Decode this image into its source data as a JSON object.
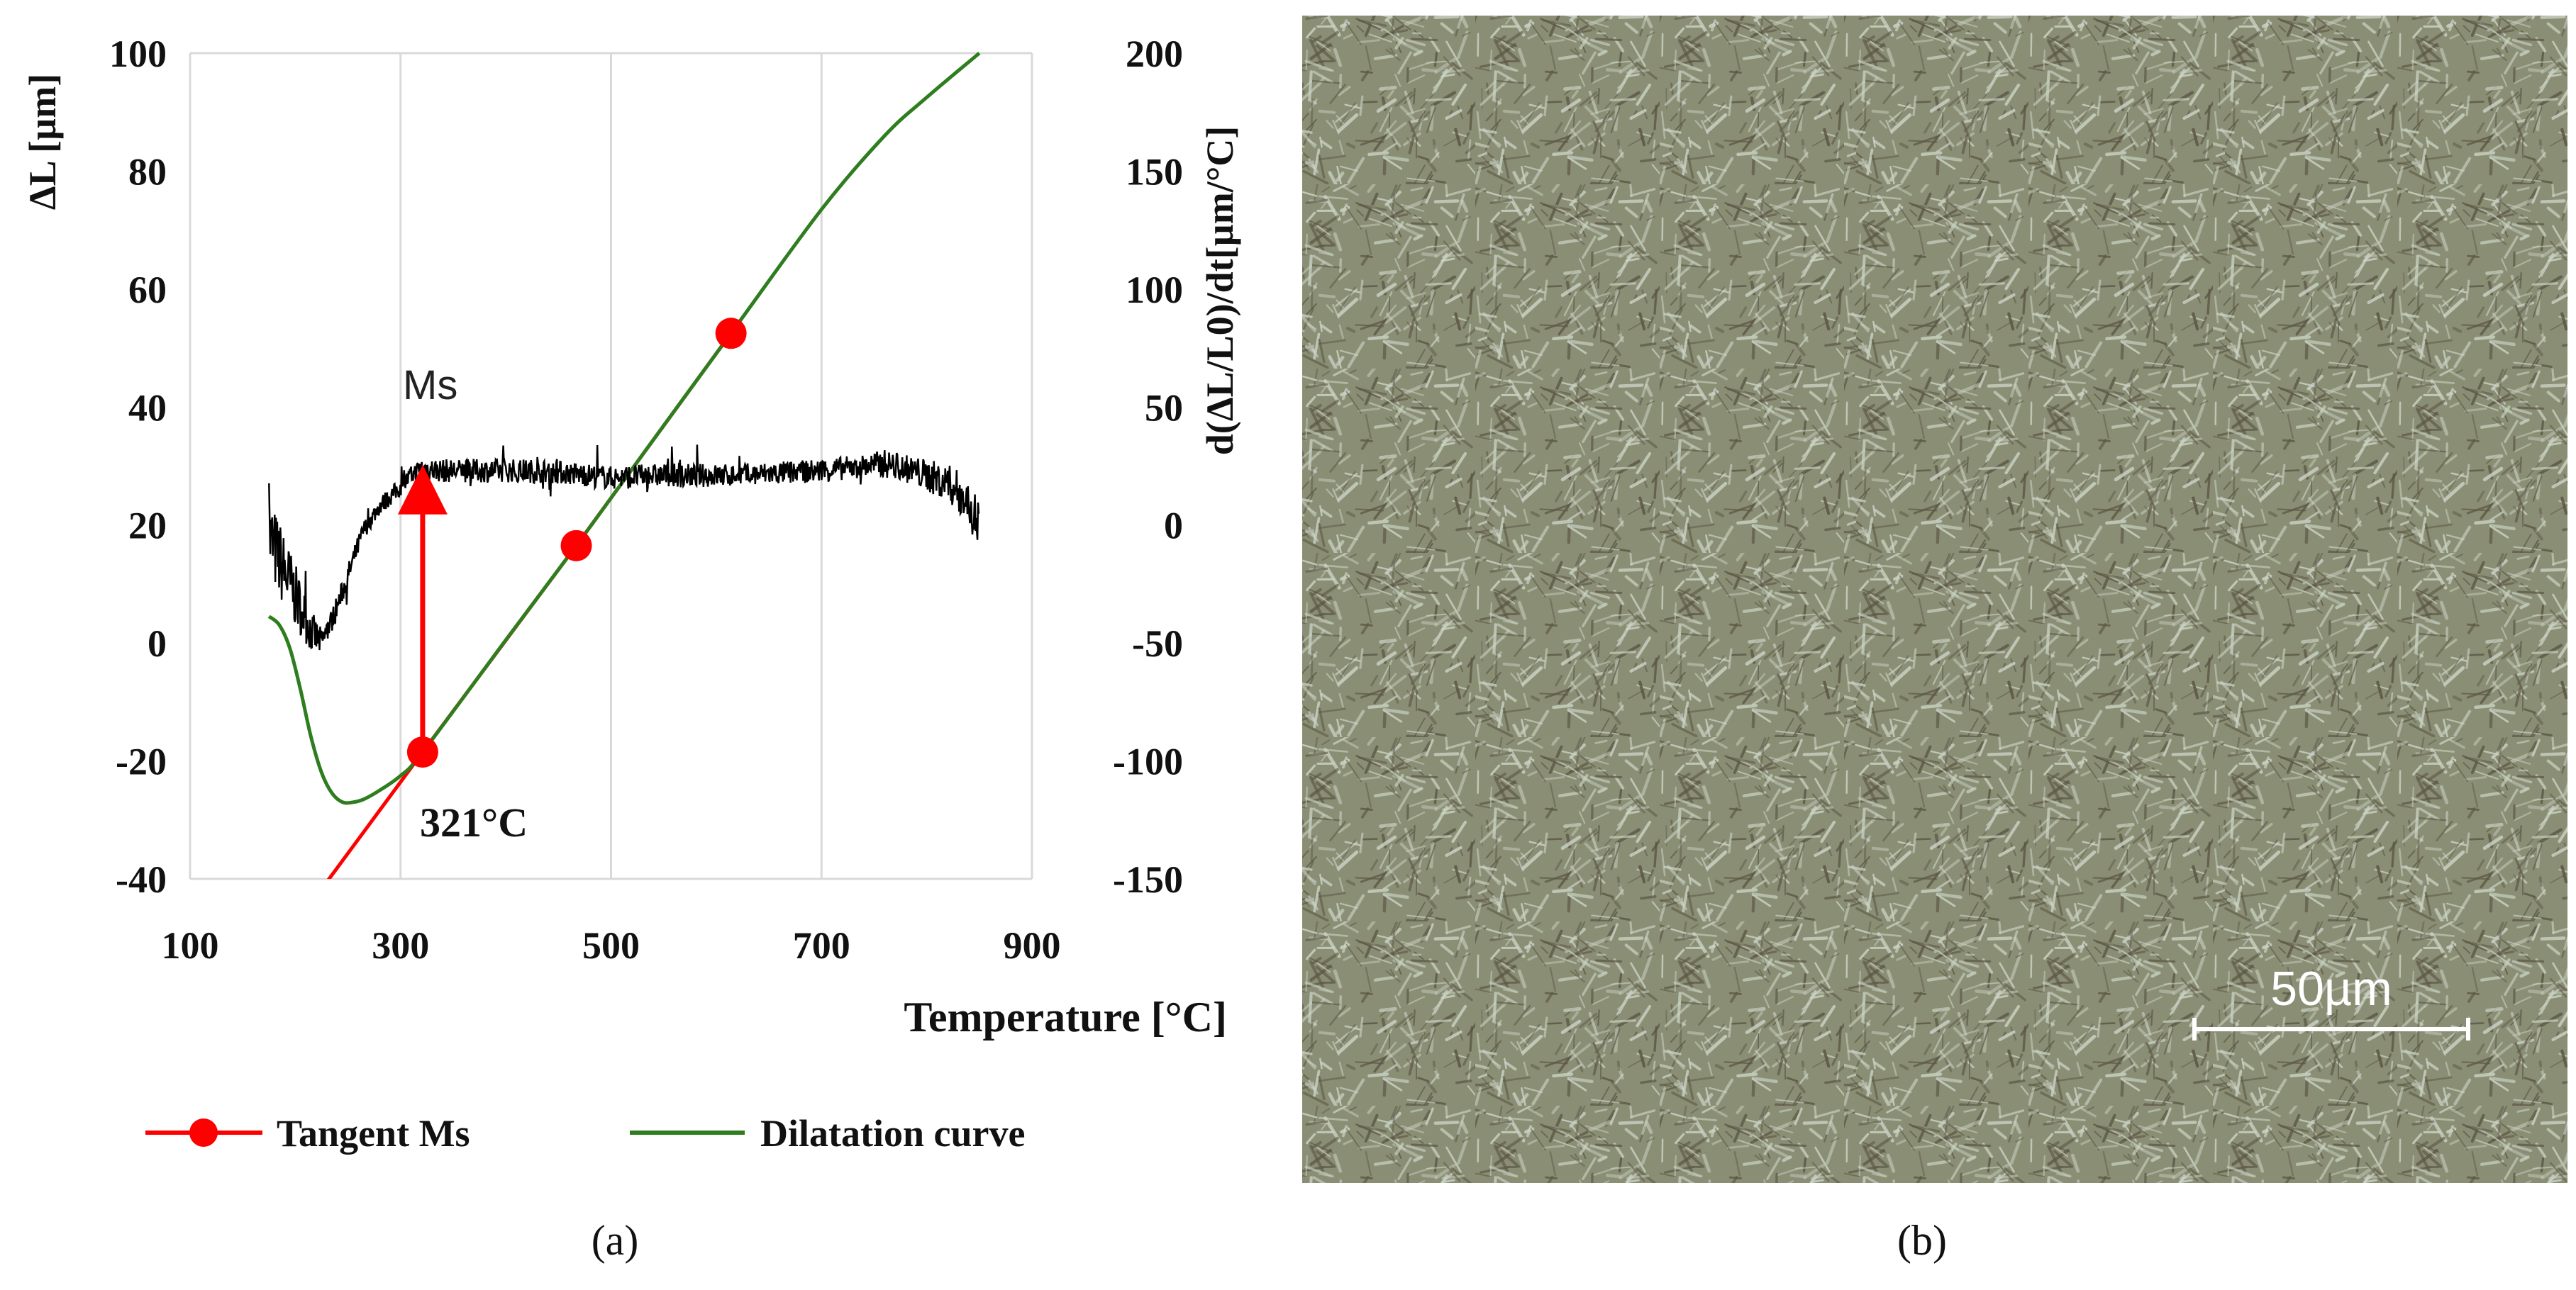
{
  "chart_data": {
    "type": "line",
    "panel_label": "(a)",
    "xlabel": "Temperature [°C]",
    "ylabel": "ΔL [µm]",
    "y2label": "d(ΔL/L0)/dt[µm/°C]",
    "xlim": [
      100,
      900
    ],
    "ylim": [
      -40,
      100
    ],
    "y2lim": [
      -150,
      200
    ],
    "xticks": [
      100,
      300,
      500,
      700,
      900
    ],
    "yticks": [
      -40,
      -20,
      0,
      20,
      40,
      60,
      80,
      100
    ],
    "y2ticks": [
      -150,
      -100,
      -50,
      0,
      50,
      100,
      150,
      200
    ],
    "grid": "vertical",
    "series": [
      {
        "name": "Dilatation curve",
        "color": "#2e7d1e",
        "axis": "left",
        "x": [
          175,
          185,
          195,
          205,
          215,
          225,
          235,
          245,
          255,
          265,
          280,
          300,
          321,
          400,
          467,
          520,
          614,
          700,
          760,
          800,
          850
        ],
        "y": [
          4.5,
          3,
          -1,
          -8,
          -16,
          -22,
          -25.5,
          -27,
          -27,
          -26.5,
          -25,
          -22.5,
          -18.5,
          0.5,
          16.5,
          29.5,
          52.5,
          73.5,
          86,
          92.5,
          100
        ]
      },
      {
        "name": "Tangent Ms",
        "color": "#ff0000",
        "axis": "left",
        "x": [
          230,
          321,
          467,
          614
        ],
        "y": [
          -40.5,
          -18.5,
          16.5,
          52.5
        ],
        "markers": [
          {
            "x": 321,
            "y": -18.5
          },
          {
            "x": 467,
            "y": 16.5
          },
          {
            "x": 614,
            "y": 52.5
          }
        ]
      },
      {
        "name": "derivative",
        "color": "#000000",
        "axis": "right",
        "x": [
          175,
          185,
          195,
          205,
          215,
          225,
          235,
          245,
          255,
          265,
          280,
          300,
          310,
          320,
          340,
          380,
          420,
          460,
          500,
          540,
          580,
          620,
          660,
          700,
          740,
          760,
          780,
          800,
          820,
          835,
          850
        ],
        "y": [
          -5,
          -15,
          -25,
          -35,
          -45,
          -50,
          -40,
          -28,
          -15,
          -2,
          8,
          16,
          21,
          24,
          23,
          23,
          23,
          22,
          20,
          21,
          21,
          21,
          22,
          23,
          25,
          26,
          24,
          21,
          18,
          12,
          0
        ],
        "noise": [
          18,
          17,
          15,
          12,
          9,
          6,
          5,
          5,
          5,
          4,
          4,
          4,
          4,
          5,
          5,
          5,
          5,
          5,
          5,
          5,
          5,
          5,
          5,
          5,
          5,
          6,
          6,
          7,
          8,
          10,
          12
        ]
      }
    ],
    "annotations": {
      "ms_label": "Ms",
      "ms_temp_label": "321°C",
      "arrow_from": {
        "x": 321,
        "y": -18.5
      },
      "arrow_to": {
        "x": 321,
        "y": 26
      }
    },
    "legend": {
      "placement": "bottom",
      "entries": [
        "Tangent Ms",
        "Dilatation curve"
      ]
    }
  },
  "micrograph": {
    "panel_label": "(b)",
    "scale_bar_label": "50µm",
    "base_color": "#8a8e74"
  }
}
